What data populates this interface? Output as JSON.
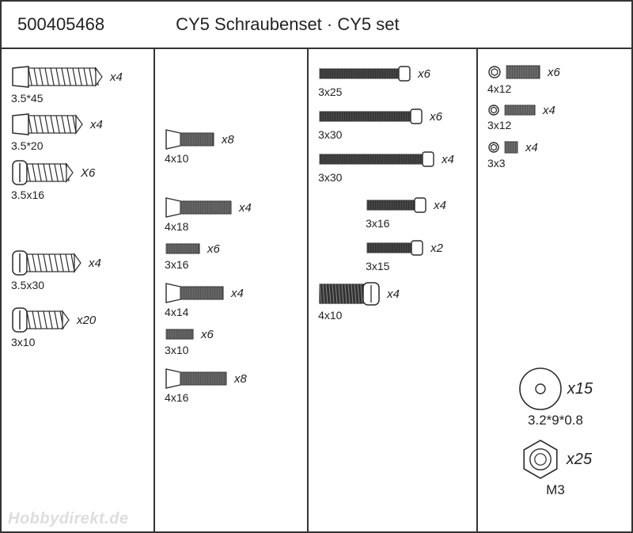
{
  "header": {
    "part_number": "500405468",
    "title": "CY5 Schraubenset · CY5 set"
  },
  "watermark": "Hobbydirekt.de",
  "colors": {
    "stroke": "#2b2b2b",
    "fill_dark": "#555555",
    "fill_light": "#ffffff",
    "text": "#222222"
  },
  "columns": [
    {
      "items": [
        {
          "type": "wood-csk",
          "size": "3.5*45",
          "qty": "x4",
          "len": 85,
          "dia": 22,
          "gap_after": 8
        },
        {
          "type": "wood-csk",
          "size": "3.5*20",
          "qty": "x4",
          "len": 60,
          "dia": 22,
          "gap_after": 8
        },
        {
          "type": "wood-pan",
          "size": "3.5x16",
          "qty": "X6",
          "len": 50,
          "dia": 22,
          "gap_after": 60
        },
        {
          "type": "wood-pan",
          "size": "3.5x30",
          "qty": "x4",
          "len": 60,
          "dia": 22,
          "gap_after": 18
        },
        {
          "type": "wood-pan",
          "size": "3x10",
          "qty": "x20",
          "len": 45,
          "dia": 22,
          "gap_after": 0
        }
      ]
    },
    {
      "items": [
        {
          "type": "csk-machine",
          "size": "4x10",
          "qty": "x8",
          "len": 42,
          "dia": 16,
          "gap_after": 40
        },
        {
          "type": "csk-machine",
          "size": "4x18",
          "qty": "x4",
          "len": 64,
          "dia": 16,
          "gap_after": 10
        },
        {
          "type": "plain-thread",
          "size": "3x16",
          "qty": "x6",
          "len": 42,
          "dia": 12,
          "gap_after": 14
        },
        {
          "type": "csk-machine",
          "size": "4x14",
          "qty": "x4",
          "len": 54,
          "dia": 16,
          "gap_after": 10
        },
        {
          "type": "plain-thread",
          "size": "3x10",
          "qty": "x6",
          "len": 34,
          "dia": 12,
          "gap_after": 14
        },
        {
          "type": "csk-machine",
          "size": "4x16",
          "qty": "x8",
          "len": 58,
          "dia": 16,
          "gap_after": 0
        }
      ]
    },
    {
      "items": [
        {
          "type": "pan-machine",
          "size": "3x25",
          "qty": "x6",
          "len": 100,
          "dia": 12,
          "gap_after": 10
        },
        {
          "type": "pan-machine",
          "size": "3x30",
          "qty": "x6",
          "len": 115,
          "dia": 12,
          "gap_after": 10
        },
        {
          "type": "pan-machine",
          "size": "3x30",
          "qty": "x4",
          "len": 130,
          "dia": 12,
          "gap_after": 14
        },
        {
          "type": "pan-machine",
          "size": "3x16",
          "qty": "x4",
          "len": 60,
          "dia": 12,
          "gap_after": 10,
          "align": "right",
          "pad": 60
        },
        {
          "type": "pan-machine",
          "size": "3x15",
          "qty": "x2",
          "len": 56,
          "dia": 12,
          "gap_after": 10,
          "align": "right",
          "pad": 60
        },
        {
          "type": "pan-thick",
          "size": "4x10",
          "qty": "x4",
          "len": 55,
          "dia": 24,
          "gap_after": 0
        }
      ]
    },
    {
      "items": [
        {
          "type": "grub",
          "size": "4x12",
          "qty": "x6",
          "len": 42,
          "dia": 16,
          "hex": 14,
          "gap_after": 10
        },
        {
          "type": "grub",
          "size": "3x12",
          "qty": "x4",
          "len": 38,
          "dia": 12,
          "hex": 12,
          "gap_after": 10
        },
        {
          "type": "grub",
          "size": "3x3",
          "qty": "x4",
          "len": 16,
          "dia": 14,
          "hex": 12,
          "gap_after": 0
        }
      ],
      "bottom": [
        {
          "type": "washer",
          "size": "3.2*9*0.8",
          "qty": "x15",
          "outer": 52,
          "inner": 12
        },
        {
          "type": "nut",
          "size": "M3",
          "qty": "x25",
          "outer": 48
        }
      ]
    }
  ]
}
